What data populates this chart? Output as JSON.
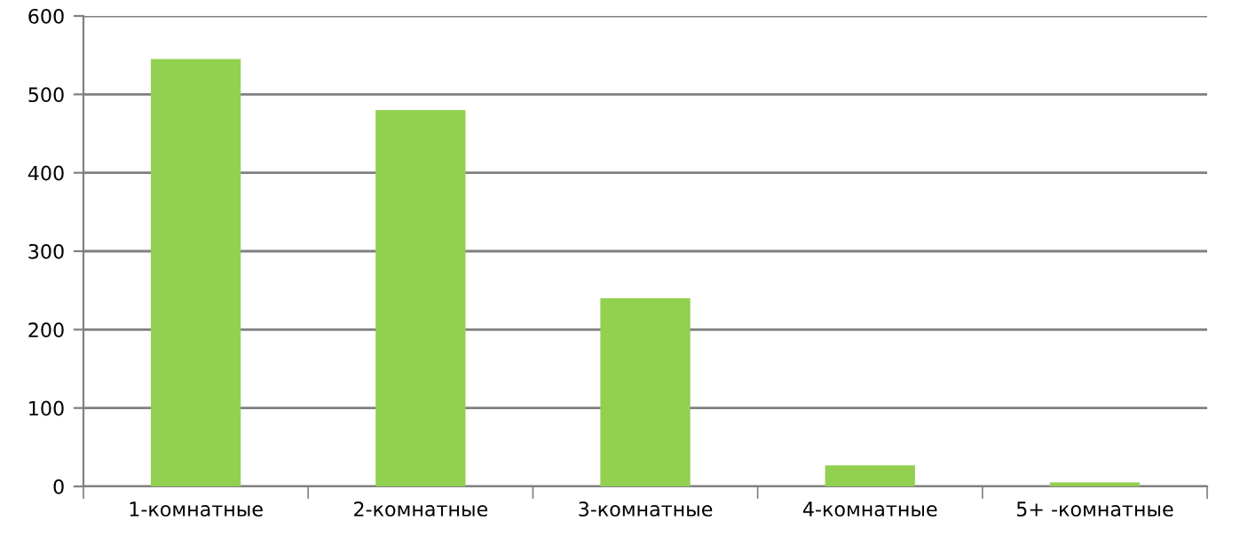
{
  "chart_data": {
    "type": "bar",
    "categories": [
      "1-комнатные",
      "2-комнатные",
      "3-комнатные",
      "4-комнатные",
      "5+ -комнатные"
    ],
    "values": [
      545,
      480,
      240,
      27,
      5
    ],
    "color": "#92d050",
    "ylim": [
      0,
      600
    ],
    "yticks": [
      0,
      100,
      200,
      300,
      400,
      500,
      600
    ],
    "grid": "y",
    "legend": false
  }
}
